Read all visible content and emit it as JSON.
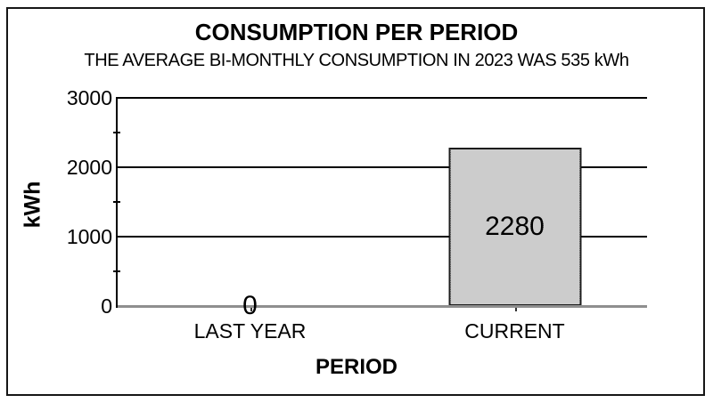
{
  "window": {
    "background": "#ffffff",
    "border_color": "#161616"
  },
  "chart_data": {
    "type": "bar",
    "title": "CONSUMPTION PER PERIOD",
    "subtitle": "THE AVERAGE BI-MONTHLY CONSUMPTION IN 2023 WAS 535 kWh",
    "categories": [
      "LAST YEAR",
      "CURRENT"
    ],
    "values": [
      0,
      2280
    ],
    "xlabel": "PERIOD",
    "ylabel": "kWh",
    "ylim": [
      0,
      3000
    ],
    "yticks": [
      0,
      1000,
      2000,
      3000
    ],
    "minor_yticks": [
      500,
      1500,
      2500
    ],
    "grid": true,
    "legend_position": "none",
    "bar_style": "gray dotted halftone fill with black border, value labels centered on bars",
    "colors": {
      "gridline": "#000000",
      "baseline": "#8f8f8f",
      "bar_border": "#1c1c1c",
      "bar_pattern_gray": "#9a9a9a",
      "text": "#000000"
    }
  }
}
